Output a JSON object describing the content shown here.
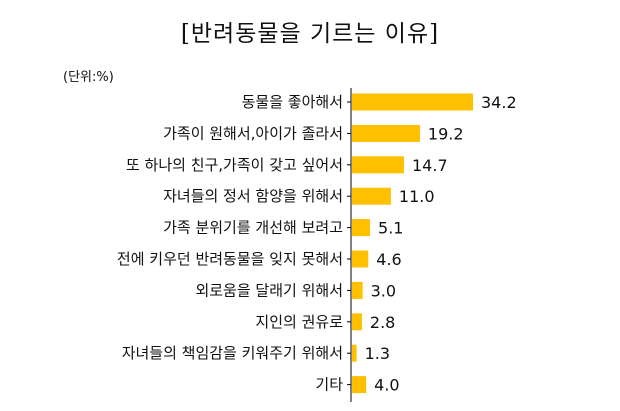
{
  "chart_data": {
    "type": "bar",
    "orientation": "horizontal",
    "title": "[반려동물을 기르는 이유]",
    "unit_label": "(단위:%)",
    "categories": [
      "동물을 좋아해서",
      "가족이 원해서,아이가 졸라서",
      "또 하나의 친구,가족이 갖고 싶어서",
      "자녀들의 정서 함양을 위해서",
      "가족 분위기를 개선해 보려고",
      "전에 키우던 반려동물을 잊지 못해서",
      "외로움을 달래기 위해서",
      "지인의 권유로",
      "자녀들의 책임감을 키워주기 위해서",
      "기타"
    ],
    "values": [
      34.2,
      19.2,
      14.7,
      11.0,
      5.1,
      4.6,
      3.0,
      2.8,
      1.3,
      4.0
    ],
    "value_labels": [
      "34.2",
      "19.2",
      "14.7",
      "11.0",
      "5.1",
      "4.6",
      "3.0",
      "2.8",
      "1.3",
      "4.0"
    ],
    "xlim": [
      0,
      35
    ],
    "grid": false,
    "legend": "none",
    "bar_color": "#FFC000",
    "axis_color": "#000000"
  }
}
